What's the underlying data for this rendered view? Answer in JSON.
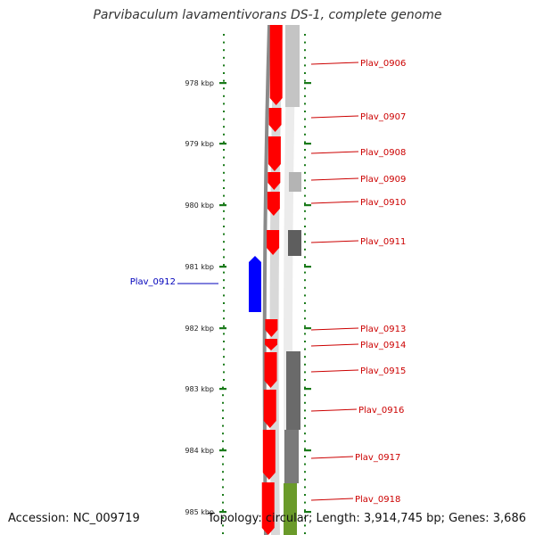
{
  "title": "Parvibaculum lavamentivorans DS-1, complete genome",
  "footer": {
    "accession": "Accession: NC_009719",
    "topology": "Topology: circular; Length: 3,914,745 bp; Genes: 3,686"
  },
  "colors": {
    "forward_gene": "#ff0000",
    "reverse_gene": "#0000ff",
    "backbone": "#8a8a8a",
    "tick": "#1a7a1a",
    "label_forward": "#cc0000",
    "label_reverse": "#0000bb",
    "track_green": "#6a9a2a"
  },
  "ticks": [
    "978 kbp",
    "979 kbp",
    "980 kbp",
    "981 kbp",
    "982 kbp",
    "983 kbp",
    "984 kbp",
    "985 kbp"
  ],
  "genes": [
    {
      "name": "Plav_0906",
      "strand": "+"
    },
    {
      "name": "Plav_0907",
      "strand": "+"
    },
    {
      "name": "Plav_0908",
      "strand": "+"
    },
    {
      "name": "Plav_0909",
      "strand": "+"
    },
    {
      "name": "Plav_0910",
      "strand": "+"
    },
    {
      "name": "Plav_0911",
      "strand": "+"
    },
    {
      "name": "Plav_0912",
      "strand": "-"
    },
    {
      "name": "Plav_0913",
      "strand": "+"
    },
    {
      "name": "Plav_0914",
      "strand": "+"
    },
    {
      "name": "Plav_0915",
      "strand": "+"
    },
    {
      "name": "Plav_0916",
      "strand": "+"
    },
    {
      "name": "Plav_0917",
      "strand": "+"
    },
    {
      "name": "Plav_0918",
      "strand": "+"
    }
  ]
}
